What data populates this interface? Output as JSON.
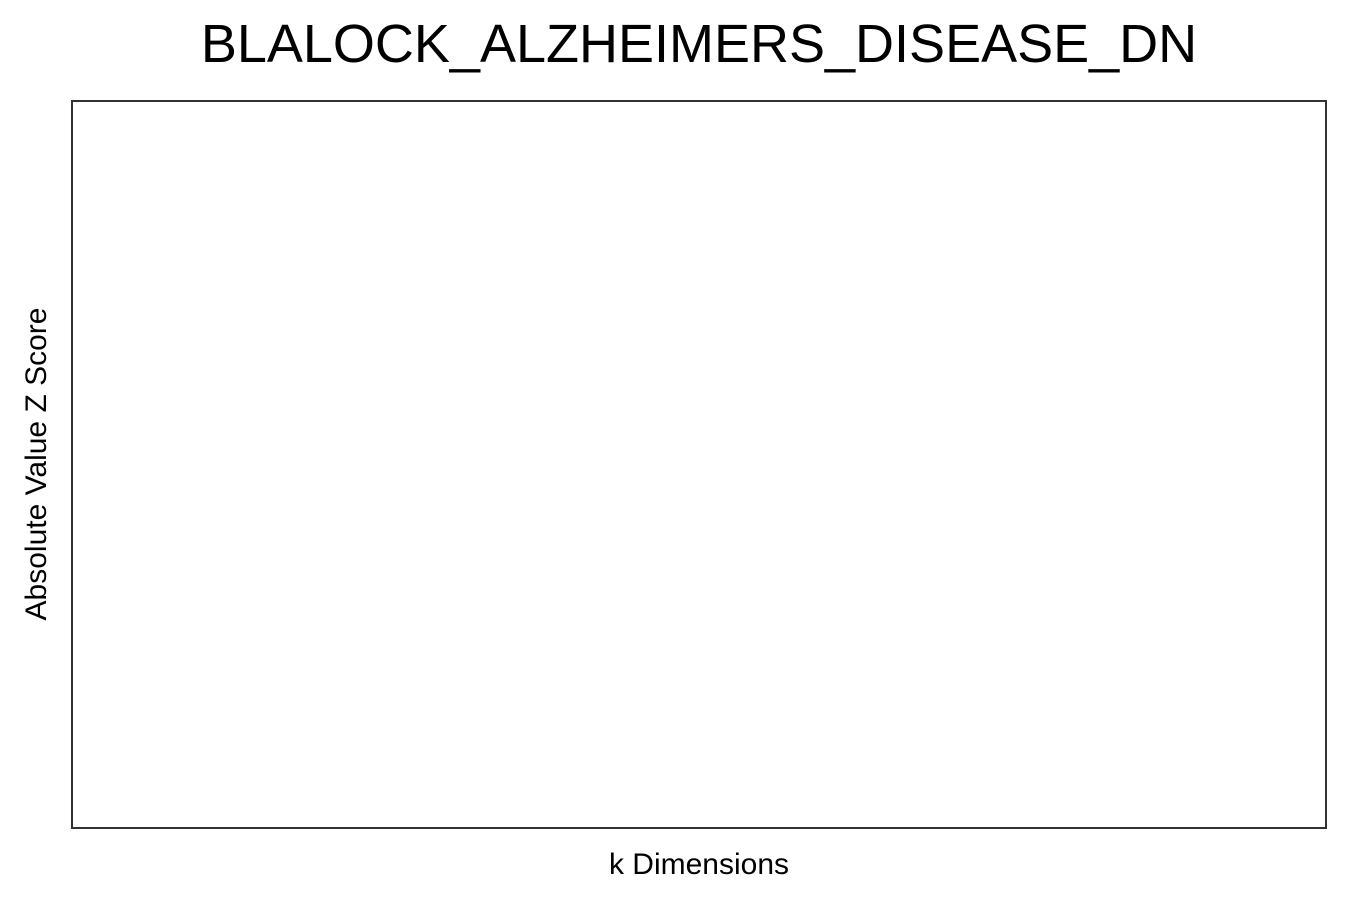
{
  "chart_data": {
    "type": "line",
    "title": "BLALOCK_ALZHEIMERS_DISEASE_DN",
    "xlabel": "k Dimensions",
    "ylabel": "Absolute Value Z Score",
    "series": [],
    "grid": false,
    "legend": "none"
  },
  "colors": {
    "frame": "#333333",
    "background": "#ffffff",
    "text": "#000000"
  }
}
